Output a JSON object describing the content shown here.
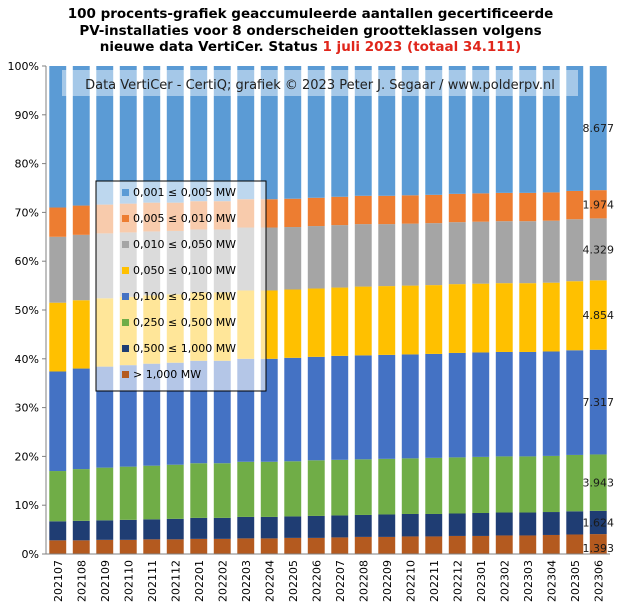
{
  "title": {
    "line1": "100 procents-grafiek geaccumuleerde aantallen gecertificeerde",
    "line2": "PV-installaties voor 8 onderscheiden grootteklassen volgens",
    "line3_pre": "nieuwe data VertiCer. Status ",
    "line3_highlight": "1 juli 2023 (totaal 34.111)"
  },
  "watermark": "Data VertiCer - CertiQ; grafiek © 2023 Peter J. Segaar / www.polderpv.nl",
  "colors": {
    "title_highlight": "#e0261b",
    "series": [
      "#b45a1f",
      "#1f3d73",
      "#70ad47",
      "#4472c4",
      "#ffc000",
      "#a5a5a5",
      "#ed7d31",
      "#5b9bd5"
    ]
  },
  "chart_data": {
    "type": "bar",
    "stacked": "percent",
    "ylim": [
      0,
      100
    ],
    "yticks": [
      "0%",
      "10%",
      "20%",
      "30%",
      "40%",
      "50%",
      "60%",
      "70%",
      "80%",
      "90%",
      "100%"
    ],
    "grid": false,
    "legend_position": "top-left",
    "categories": [
      "202107",
      "202108",
      "202109",
      "202110",
      "202111",
      "202112",
      "202201",
      "202202",
      "202203",
      "202204",
      "202205",
      "202206",
      "202207",
      "202208",
      "202209",
      "202210",
      "202211",
      "202212",
      "202301",
      "202302",
      "202303",
      "202304",
      "202305",
      "202306"
    ],
    "series": [
      {
        "name": "> 1,000 MW",
        "values": [
          2.8,
          2.8,
          2.9,
          2.9,
          3.0,
          3.0,
          3.1,
          3.1,
          3.2,
          3.2,
          3.3,
          3.3,
          3.4,
          3.5,
          3.5,
          3.6,
          3.6,
          3.7,
          3.7,
          3.8,
          3.8,
          3.9,
          4.0,
          4.08
        ],
        "end_label": "1.393"
      },
      {
        "name": "0,500 ≤ 1,000 MW",
        "values": [
          3.9,
          4.0,
          4.0,
          4.1,
          4.1,
          4.2,
          4.3,
          4.3,
          4.4,
          4.4,
          4.4,
          4.5,
          4.5,
          4.5,
          4.6,
          4.6,
          4.6,
          4.6,
          4.7,
          4.7,
          4.7,
          4.7,
          4.75,
          4.76
        ],
        "end_label": "1.624"
      },
      {
        "name": "0,250 ≤ 0,500 MW",
        "values": [
          10.3,
          10.6,
          10.8,
          10.9,
          11.0,
          11.1,
          11.2,
          11.2,
          11.3,
          11.3,
          11.3,
          11.4,
          11.4,
          11.4,
          11.4,
          11.4,
          11.5,
          11.5,
          11.5,
          11.5,
          11.5,
          11.5,
          11.55,
          11.56
        ],
        "end_label": "3.943"
      },
      {
        "name": "0,100 ≤ 0,250 MW",
        "values": [
          20.4,
          20.6,
          20.7,
          20.8,
          20.9,
          20.9,
          21.0,
          21.0,
          21.1,
          21.1,
          21.2,
          21.2,
          21.3,
          21.3,
          21.3,
          21.3,
          21.3,
          21.4,
          21.4,
          21.4,
          21.4,
          21.4,
          21.45,
          21.45
        ],
        "end_label": "7.317"
      },
      {
        "name": "0,050 ≤ 0,100 MW",
        "values": [
          14.1,
          14.0,
          14.0,
          14.0,
          14.0,
          14.0,
          14.0,
          14.0,
          14.0,
          14.0,
          14.0,
          14.0,
          14.0,
          14.1,
          14.1,
          14.1,
          14.1,
          14.1,
          14.1,
          14.1,
          14.1,
          14.1,
          14.15,
          14.23
        ],
        "end_label": "4.854"
      },
      {
        "name": "0,010 ≤ 0,050 MW",
        "values": [
          13.5,
          13.4,
          13.3,
          13.2,
          13.1,
          13.0,
          12.9,
          12.9,
          12.9,
          12.9,
          12.8,
          12.8,
          12.8,
          12.8,
          12.7,
          12.7,
          12.7,
          12.7,
          12.7,
          12.7,
          12.7,
          12.7,
          12.7,
          12.69
        ],
        "end_label": "4.329"
      },
      {
        "name": "0,005 ≤ 0,010 MW",
        "values": [
          6.0,
          6.0,
          5.9,
          5.9,
          5.9,
          5.8,
          5.8,
          5.8,
          5.8,
          5.8,
          5.8,
          5.8,
          5.8,
          5.8,
          5.8,
          5.8,
          5.8,
          5.8,
          5.8,
          5.8,
          5.8,
          5.8,
          5.8,
          5.79
        ],
        "end_label": "1.974"
      },
      {
        "name": "0,001 ≤ 0,005 MW",
        "values": [
          29.0,
          28.6,
          28.4,
          28.2,
          28.0,
          28.0,
          27.7,
          27.7,
          27.3,
          27.3,
          27.2,
          27.0,
          26.8,
          26.6,
          26.6,
          26.5,
          26.4,
          26.2,
          26.1,
          26.0,
          26.0,
          25.9,
          25.6,
          25.44
        ],
        "end_label": "8.677"
      }
    ]
  }
}
